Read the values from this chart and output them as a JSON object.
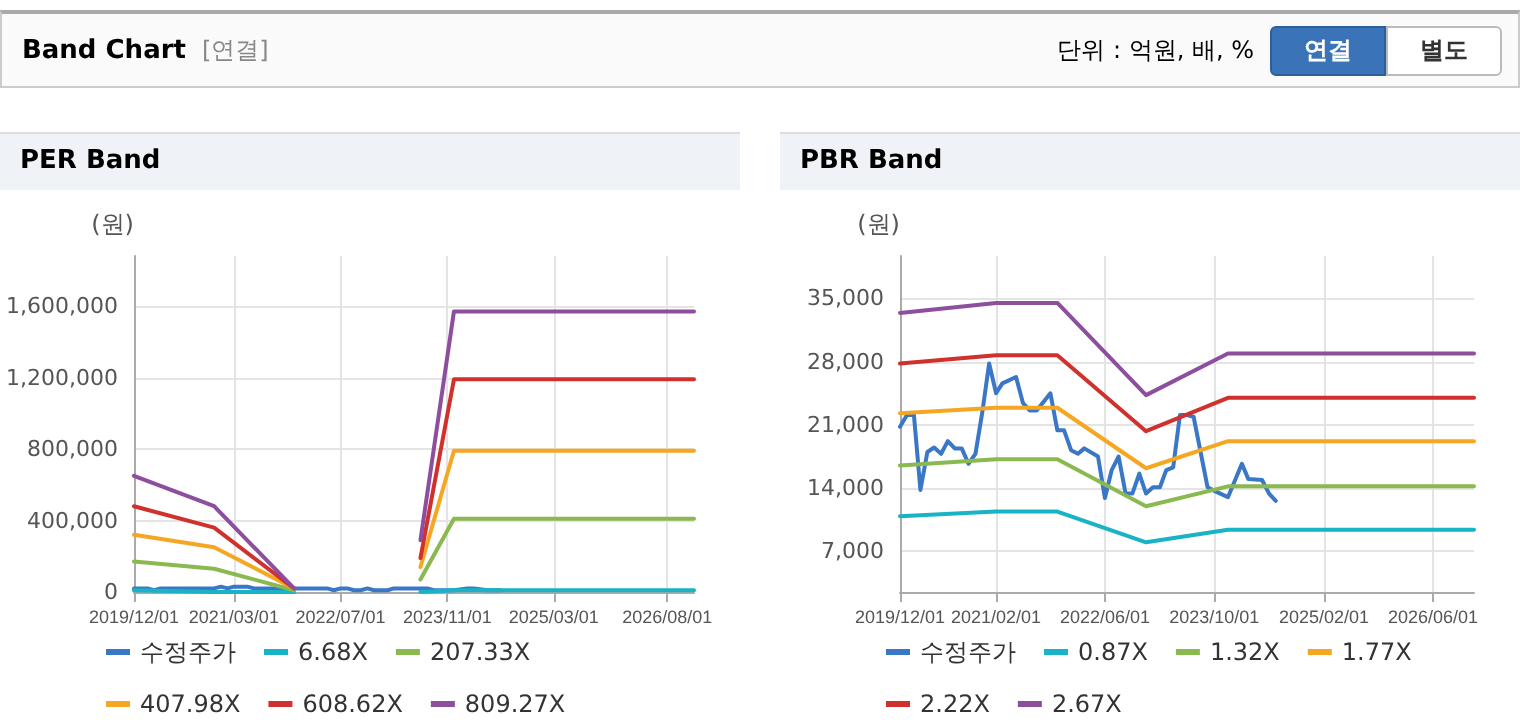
{
  "chart_data": [
    {
      "type": "other",
      "title": "Band Chart",
      "annotations": [
        "[연결]",
        "단위 : 억원, 배, %",
        "연결",
        "별도"
      ]
    },
    {
      "type": "line",
      "title": "PER Band",
      "ylabel": "(원)",
      "grid": true,
      "legend": "bottom",
      "marker": "none",
      "line_style": "solid",
      "xlim": [
        "2019-12-01",
        "2026-12-01"
      ],
      "xticks": [
        {
          "value": "2019-12-01",
          "label": "2019/12/01"
        },
        {
          "value": "2021-03-01",
          "label": "2021/03/01"
        },
        {
          "value": "2022-07-01",
          "label": "2022/07/01"
        },
        {
          "value": "2023-11-01",
          "label": "2023/11/01"
        },
        {
          "value": "2025-03-01",
          "label": "2025/03/01"
        },
        {
          "value": "2026-08-01",
          "label": "2026/08/01"
        }
      ],
      "ylim": [
        0,
        1880000
      ],
      "yticks": [
        {
          "value": 0,
          "label": "0"
        },
        {
          "value": 400000,
          "label": "400,000"
        },
        {
          "value": 800000,
          "label": "800,000"
        },
        {
          "value": 1200000,
          "label": "1,200,000"
        },
        {
          "value": 1600000,
          "label": "1,600,000"
        }
      ],
      "series": [
        {
          "name": "수정주가",
          "color": "#3a77c6",
          "x": [
            "2019-12",
            "2020-01",
            "2020-02",
            "2020-03",
            "2020-04",
            "2020-05",
            "2020-06",
            "2020-07",
            "2020-08",
            "2020-09",
            "2020-10",
            "2020-11",
            "2020-12",
            "2021-01",
            "2021-02",
            "2021-03",
            "2021-05",
            "2021-06",
            "2021-07",
            "2021-08",
            "2021-10",
            "2021-11",
            "2021-12",
            "2022-01",
            "2022-02",
            "2022-03",
            "2022-05",
            "2022-06",
            "2022-07",
            "2022-08",
            "2022-09",
            "2022-10",
            "2022-11",
            "2022-12",
            "2023-01",
            "2023-02",
            "2023-03",
            "2023-04",
            "2023-05",
            "2023-06",
            "2023-07",
            "2023-08",
            "2023-09",
            "2023-10",
            "2023-12",
            "2024-02",
            "2024-03",
            "2024-05",
            "2024-06",
            "2024-07"
          ],
          "values": [
            20000,
            20000,
            20000,
            10000,
            20000,
            20000,
            20000,
            20000,
            20000,
            20000,
            20000,
            20000,
            20000,
            30000,
            20000,
            30000,
            30000,
            20000,
            20000,
            20000,
            20000,
            20000,
            20000,
            20000,
            20000,
            20000,
            20000,
            10000,
            20000,
            20000,
            10000,
            10000,
            20000,
            10000,
            10000,
            10000,
            20000,
            20000,
            20000,
            20000,
            20000,
            20000,
            10000,
            10000,
            10000,
            20000,
            20000,
            10000,
            10000,
            10000
          ]
        },
        {
          "name": "6.68X",
          "color": "#19b3c6",
          "x": [
            "2019-12",
            "2020-12",
            "2021-12",
            "2022-06",
            "2023-07",
            "2023-12",
            "2026-12"
          ],
          "values": [
            10000,
            0,
            0,
            null,
            0,
            10000,
            10000
          ]
        },
        {
          "name": "207.33X",
          "color": "#8ab94f",
          "x": [
            "2019-12",
            "2020-12",
            "2021-12",
            "2022-06",
            "2023-07",
            "2023-12",
            "2026-12"
          ],
          "values": [
            170000,
            130000,
            10000,
            null,
            70000,
            410000,
            410000
          ]
        },
        {
          "name": "407.98X",
          "color": "#f5a623",
          "x": [
            "2019-12",
            "2020-12",
            "2021-12",
            "2022-06",
            "2023-07",
            "2023-12",
            "2026-12"
          ],
          "values": [
            320000,
            250000,
            20000,
            null,
            140000,
            790000,
            790000
          ]
        },
        {
          "name": "608.62X",
          "color": "#d0312d",
          "x": [
            "2019-12",
            "2020-12",
            "2021-12",
            "2022-06",
            "2023-07",
            "2023-12",
            "2026-12"
          ],
          "values": [
            480000,
            360000,
            20000,
            null,
            190000,
            1190000,
            1190000
          ]
        },
        {
          "name": "809.27X",
          "color": "#8e4e9e",
          "x": [
            "2019-12",
            "2020-12",
            "2021-12",
            "2022-06",
            "2023-07",
            "2023-12",
            "2026-12"
          ],
          "values": [
            650000,
            480000,
            20000,
            null,
            290000,
            1570000,
            1570000
          ]
        }
      ]
    },
    {
      "type": "line",
      "title": "PBR Band",
      "ylabel": "(원)",
      "grid": true,
      "legend": "bottom",
      "marker": "none",
      "line_style": "solid",
      "xlim": [
        "2019-12-01",
        "2026-12-01"
      ],
      "xticks": [
        {
          "value": "2019-12-01",
          "label": "2019/12/01"
        },
        {
          "value": "2021-02-01",
          "label": "2021/02/01"
        },
        {
          "value": "2022-06-01",
          "label": "2022/06/01"
        },
        {
          "value": "2023-10-01",
          "label": "2023/10/01"
        },
        {
          "value": "2025-02-01",
          "label": "2025/02/01"
        },
        {
          "value": "2026-06-01",
          "label": "2026/06/01"
        }
      ],
      "ylim": [
        2500,
        39700
      ],
      "yticks": [
        {
          "value": 7000,
          "label": "7,000"
        },
        {
          "value": 14000,
          "label": "14,000"
        },
        {
          "value": 21000,
          "label": "21,000"
        },
        {
          "value": 28000,
          "label": "28,000"
        },
        {
          "value": 35000,
          "label": "35,000"
        }
      ],
      "series": [
        {
          "name": "수정주가",
          "color": "#3a77c6",
          "x": [
            "2019-12",
            "2020-01",
            "2020-02",
            "2020-03",
            "2020-04",
            "2020-05",
            "2020-06",
            "2020-07",
            "2020-08",
            "2020-09",
            "2020-10",
            "2020-11",
            "2020-12",
            "2021-01",
            "2021-02",
            "2021-03",
            "2021-05",
            "2021-06",
            "2021-07",
            "2021-08",
            "2021-10",
            "2021-11",
            "2021-12",
            "2022-01",
            "2022-02",
            "2022-03",
            "2022-05",
            "2022-06",
            "2022-07",
            "2022-08",
            "2022-09",
            "2022-10",
            "2022-11",
            "2022-12",
            "2023-01",
            "2023-02",
            "2023-03",
            "2023-04",
            "2023-05",
            "2023-06",
            "2023-07",
            "2023-08",
            "2023-09",
            "2023-10",
            "2023-12",
            "2024-02",
            "2024-03",
            "2024-05",
            "2024-06",
            "2024-07"
          ],
          "values": [
            20800,
            22100,
            22100,
            13800,
            18000,
            18500,
            17800,
            19200,
            18400,
            18400,
            16700,
            17800,
            22300,
            27800,
            24500,
            25600,
            26300,
            23400,
            22600,
            22600,
            24500,
            20400,
            20400,
            18200,
            17800,
            18400,
            17500,
            12900,
            16000,
            17500,
            13400,
            13400,
            15600,
            13400,
            14100,
            14100,
            16000,
            16300,
            22100,
            22100,
            21900,
            18000,
            14100,
            13700,
            13000,
            16700,
            15000,
            14900,
            13400,
            12600
          ]
        },
        {
          "name": "0.87X",
          "color": "#19b3c6",
          "x": [
            "2019-12",
            "2021-02",
            "2021-11",
            "2022-12",
            "2023-12",
            "2026-12"
          ],
          "values": [
            10900,
            11400,
            11400,
            8000,
            9400,
            9400
          ]
        },
        {
          "name": "1.32X",
          "color": "#8ab94f",
          "x": [
            "2019-12",
            "2021-02",
            "2021-11",
            "2022-12",
            "2023-12",
            "2026-12"
          ],
          "values": [
            16500,
            17200,
            17200,
            12000,
            14200,
            14200
          ]
        },
        {
          "name": "1.77X",
          "color": "#f5a623",
          "x": [
            "2019-12",
            "2021-02",
            "2021-11",
            "2022-12",
            "2023-12",
            "2026-12"
          ],
          "values": [
            22300,
            22900,
            22900,
            16200,
            19200,
            19200
          ]
        },
        {
          "name": "2.22X",
          "color": "#d0312d",
          "x": [
            "2019-12",
            "2021-02",
            "2021-11",
            "2022-12",
            "2023-12",
            "2026-12"
          ],
          "values": [
            27800,
            28700,
            28700,
            20300,
            24000,
            24000
          ]
        },
        {
          "name": "2.67X",
          "color": "#8e4e9e",
          "x": [
            "2019-12",
            "2021-02",
            "2021-11",
            "2022-12",
            "2023-12",
            "2026-12"
          ],
          "values": [
            33400,
            34500,
            34500,
            24300,
            28900,
            28900
          ]
        }
      ]
    }
  ]
}
